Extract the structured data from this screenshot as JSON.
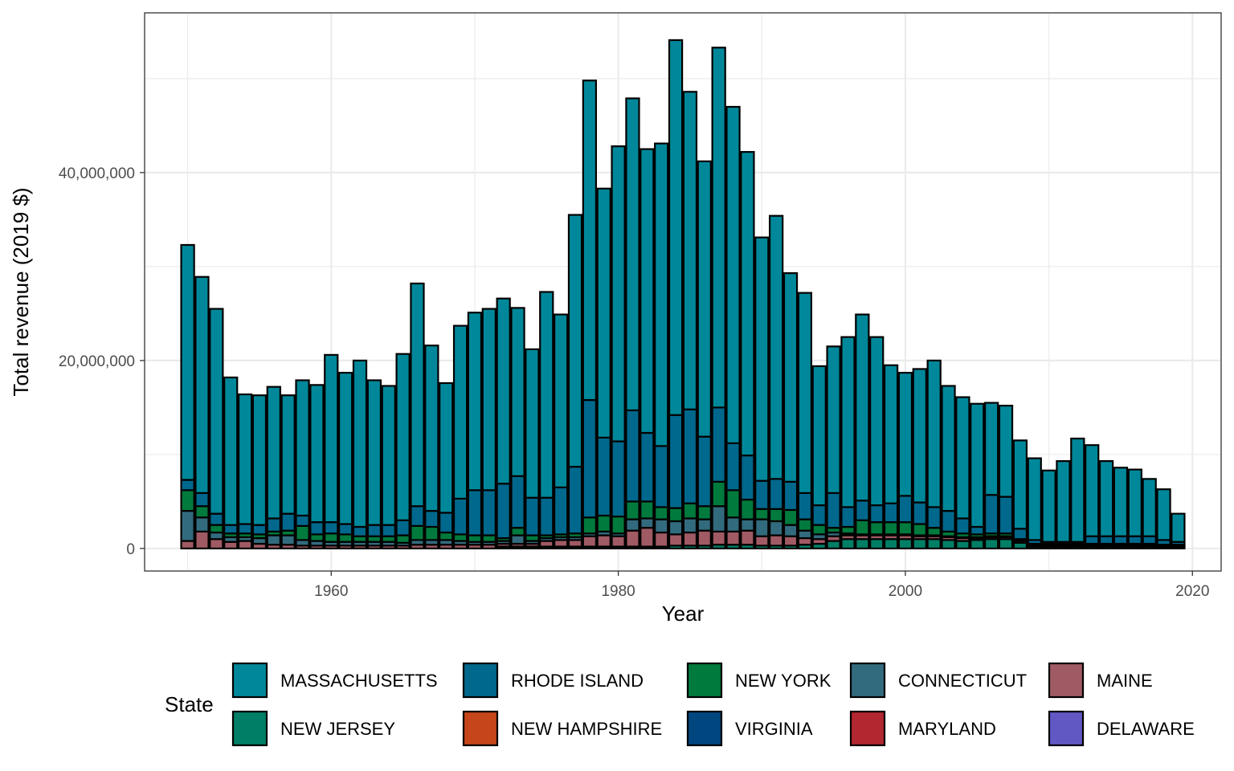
{
  "chart_data": {
    "type": "bar",
    "stacked": true,
    "xlabel": "Year",
    "ylabel": "Total revenue (2019 $)",
    "xlim": [
      1947,
      2022
    ],
    "ylim": [
      -2400000,
      57000000
    ],
    "x_ticks": [
      1960,
      1980,
      2000,
      2020
    ],
    "y_ticks": [
      0,
      20000000,
      40000000
    ],
    "y_tick_labels": [
      "0",
      "20,000,000",
      "40,000,000"
    ],
    "grid": true,
    "legend": {
      "title": "State",
      "position": "bottom",
      "entries": [
        {
          "name": "MASSACHUSETTS",
          "color": "#00889A"
        },
        {
          "name": "RHODE ISLAND",
          "color": "#00688C"
        },
        {
          "name": "NEW YORK",
          "color": "#007A3D"
        },
        {
          "name": "CONNECTICUT",
          "color": "#336B7E"
        },
        {
          "name": "MAINE",
          "color": "#A05A64"
        },
        {
          "name": "NEW JERSEY",
          "color": "#007F66"
        },
        {
          "name": "NEW HAMPSHIRE",
          "color": "#C4461A"
        },
        {
          "name": "VIRGINIA",
          "color": "#00467F"
        },
        {
          "name": "MARYLAND",
          "color": "#B22730"
        },
        {
          "name": "DELAWARE",
          "color": "#6258C4"
        }
      ]
    },
    "stack_order": [
      "DELAWARE",
      "MARYLAND",
      "VIRGINIA",
      "NEW HAMPSHIRE",
      "NEW JERSEY",
      "MAINE",
      "CONNECTICUT",
      "NEW YORK",
      "RHODE ISLAND",
      "MASSACHUSETTS"
    ],
    "series": [
      {
        "name": "MAINE",
        "years": [
          1950,
          1951,
          1952,
          1953,
          1954,
          1955,
          1956,
          1957,
          1958,
          1959,
          1960,
          1961,
          1962,
          1963,
          1964,
          1965,
          1966,
          1967,
          1968,
          1969,
          1970,
          1971,
          1972,
          1973,
          1974,
          1975,
          1976,
          1977,
          1978,
          1979,
          1980,
          1981,
          1982,
          1983,
          1984,
          1985,
          1986,
          1987,
          1988,
          1989,
          1990,
          1991,
          1992,
          1993,
          1994,
          1995,
          1996,
          1997,
          1998,
          1999,
          2000,
          2001,
          2002,
          2003,
          2004,
          2005,
          2006,
          2007,
          2008,
          2009,
          2010,
          2011,
          2012,
          2013,
          2014,
          2015,
          2016,
          2017,
          2018,
          2019
        ],
        "values": [
          800000,
          1800000,
          1000000,
          700000,
          800000,
          500000,
          400000,
          400000,
          300000,
          300000,
          300000,
          300000,
          300000,
          300000,
          300000,
          300000,
          400000,
          400000,
          400000,
          400000,
          400000,
          400000,
          300000,
          300000,
          300000,
          600000,
          700000,
          700000,
          1100000,
          1200000,
          1100000,
          1700000,
          2000000,
          1500000,
          1200000,
          1400000,
          1600000,
          1400000,
          1400000,
          1500000,
          1000000,
          1100000,
          1000000,
          700000,
          500000,
          500000,
          400000,
          400000,
          400000,
          400000,
          400000,
          300000,
          300000,
          300000,
          300000,
          200000,
          200000,
          200000,
          200000,
          100000,
          100000,
          100000,
          100000,
          100000,
          100000,
          100000,
          100000,
          100000,
          100000,
          100000
        ]
      },
      {
        "name": "CONNECTICUT",
        "years": [
          1950,
          1951,
          1952,
          1953,
          1954,
          1955,
          1956,
          1957,
          1958,
          1959,
          1960,
          1961,
          1962,
          1963,
          1964,
          1965,
          1966,
          1967,
          1968,
          1969,
          1970,
          1971,
          1972,
          1973,
          1974,
          1975,
          1976,
          1977,
          1978,
          1979,
          1980,
          1981,
          1982,
          1983,
          1984,
          1985,
          1986,
          1987,
          1988,
          1989,
          1990,
          1991,
          1992,
          1993,
          1994,
          1995,
          1996,
          1997,
          1998,
          1999,
          2000,
          2001,
          2002,
          2003,
          2004,
          2005,
          2006,
          2007,
          2008,
          2009,
          2010,
          2011,
          2012,
          2013,
          2014,
          2015,
          2016,
          2017,
          2018,
          2019
        ],
        "values": [
          3200000,
          1500000,
          700000,
          500000,
          400000,
          600000,
          1000000,
          1000000,
          600000,
          500000,
          400000,
          400000,
          400000,
          400000,
          400000,
          300000,
          500000,
          500000,
          500000,
          400000,
          300000,
          300000,
          300000,
          900000,
          300000,
          300000,
          300000,
          300000,
          300000,
          400000,
          300000,
          1200000,
          1000000,
          1400000,
          1400000,
          1500000,
          1200000,
          2700000,
          1500000,
          1200000,
          1800000,
          1500000,
          1200000,
          800000,
          500000,
          400000,
          200000,
          100000,
          100000,
          100000,
          100000,
          100000,
          100000,
          100000,
          100000,
          100000,
          100000,
          100000,
          100000,
          100000,
          100000,
          100000,
          100000,
          100000,
          100000,
          100000,
          100000,
          100000,
          100000,
          100000
        ]
      },
      {
        "name": "NEW YORK",
        "years": [
          1950,
          1951,
          1952,
          1953,
          1954,
          1955,
          1956,
          1957,
          1958,
          1959,
          1960,
          1961,
          1962,
          1963,
          1964,
          1965,
          1966,
          1967,
          1968,
          1969,
          1970,
          1971,
          1972,
          1973,
          1974,
          1975,
          1976,
          1977,
          1978,
          1979,
          1980,
          1981,
          1982,
          1983,
          1984,
          1985,
          1986,
          1987,
          1988,
          1989,
          1990,
          1991,
          1992,
          1993,
          1994,
          1995,
          1996,
          1997,
          1998,
          1999,
          2000,
          2001,
          2002,
          2003,
          2004,
          2005,
          2006,
          2007,
          2008,
          2009,
          2010,
          2011,
          2012,
          2013,
          2014,
          2015,
          2016,
          2017,
          2018,
          2019
        ],
        "values": [
          2200000,
          1200000,
          800000,
          400000,
          400000,
          400000,
          400000,
          500000,
          1500000,
          700000,
          900000,
          800000,
          600000,
          600000,
          600000,
          800000,
          1500000,
          1400000,
          800000,
          700000,
          700000,
          700000,
          300000,
          800000,
          600000,
          300000,
          300000,
          400000,
          1700000,
          1700000,
          1800000,
          1900000,
          1800000,
          1300000,
          1400000,
          1600000,
          1400000,
          2600000,
          2900000,
          2100000,
          1100000,
          1300000,
          1600000,
          1200000,
          1000000,
          500000,
          700000,
          1500000,
          1300000,
          1300000,
          1300000,
          1200000,
          800000,
          500000,
          400000,
          300000,
          300000,
          300000,
          100000,
          100000,
          100000,
          100000,
          100000,
          100000,
          100000,
          100000,
          100000,
          100000,
          100000,
          100000
        ]
      },
      {
        "name": "NEW JERSEY",
        "years": [
          1950,
          1951,
          1952,
          1953,
          1954,
          1955,
          1956,
          1957,
          1958,
          1959,
          1960,
          1961,
          1962,
          1963,
          1964,
          1965,
          1966,
          1967,
          1968,
          1969,
          1970,
          1971,
          1972,
          1973,
          1974,
          1975,
          1976,
          1977,
          1978,
          1979,
          1980,
          1981,
          1982,
          1983,
          1984,
          1985,
          1986,
          1987,
          1988,
          1989,
          1990,
          1991,
          1992,
          1993,
          1994,
          1995,
          1996,
          1997,
          1998,
          1999,
          2000,
          2001,
          2002,
          2003,
          2004,
          2005,
          2006,
          2007,
          2008,
          2009,
          2010,
          2011,
          2012,
          2013,
          2014,
          2015,
          2016,
          2017,
          2018,
          2019
        ],
        "values": [
          0,
          0,
          0,
          0,
          0,
          0,
          0,
          0,
          0,
          0,
          0,
          0,
          0,
          0,
          0,
          0,
          0,
          0,
          0,
          0,
          0,
          0,
          200000,
          200000,
          200000,
          200000,
          200000,
          200000,
          200000,
          200000,
          200000,
          200000,
          200000,
          200000,
          300000,
          300000,
          300000,
          400000,
          400000,
          400000,
          300000,
          300000,
          300000,
          400000,
          500000,
          800000,
          1000000,
          1000000,
          1000000,
          1000000,
          1000000,
          1000000,
          1000000,
          900000,
          800000,
          900000,
          1000000,
          1000000,
          600000,
          200000,
          200000,
          200000,
          200000,
          200000,
          200000,
          200000,
          200000,
          200000,
          100000,
          100000
        ]
      },
      {
        "name": "RHODE ISLAND",
        "years": [
          1950,
          1951,
          1952,
          1953,
          1954,
          1955,
          1956,
          1957,
          1958,
          1959,
          1960,
          1961,
          1962,
          1963,
          1964,
          1965,
          1966,
          1967,
          1968,
          1969,
          1970,
          1971,
          1972,
          1973,
          1974,
          1975,
          1976,
          1977,
          1978,
          1979,
          1980,
          1981,
          1982,
          1983,
          1984,
          1985,
          1986,
          1987,
          1988,
          1989,
          1990,
          1991,
          1992,
          1993,
          1994,
          1995,
          1996,
          1997,
          1998,
          1999,
          2000,
          2001,
          2002,
          2003,
          2004,
          2005,
          2006,
          2007,
          2008,
          2009,
          2010,
          2011,
          2012,
          2013,
          2014,
          2015,
          2016,
          2017,
          2018,
          2019
        ],
        "values": [
          1100000,
          1400000,
          1200000,
          900000,
          1000000,
          1000000,
          1400000,
          1800000,
          1100000,
          1300000,
          1200000,
          1100000,
          1000000,
          1200000,
          1200000,
          1600000,
          2100000,
          1700000,
          2100000,
          3800000,
          4800000,
          4800000,
          5800000,
          5500000,
          4000000,
          4000000,
          5000000,
          7100000,
          12500000,
          8300000,
          8000000,
          9700000,
          7300000,
          6500000,
          9900000,
          10000000,
          7400000,
          7900000,
          5000000,
          4700000,
          3000000,
          3200000,
          3000000,
          2800000,
          2100000,
          3700000,
          2100000,
          2100000,
          1800000,
          2000000,
          2800000,
          2300000,
          2200000,
          2200000,
          1600000,
          800000,
          4100000,
          3900000,
          1100000,
          400000,
          200000,
          200000,
          200000,
          800000,
          800000,
          800000,
          800000,
          800000,
          500000,
          300000
        ]
      },
      {
        "name": "MASSACHUSETTS",
        "years": [
          1950,
          1951,
          1952,
          1953,
          1954,
          1955,
          1956,
          1957,
          1958,
          1959,
          1960,
          1961,
          1962,
          1963,
          1964,
          1965,
          1966,
          1967,
          1968,
          1969,
          1970,
          1971,
          1972,
          1973,
          1974,
          1975,
          1976,
          1977,
          1978,
          1979,
          1980,
          1981,
          1982,
          1983,
          1984,
          1985,
          1986,
          1987,
          1988,
          1989,
          1990,
          1991,
          1992,
          1993,
          1994,
          1995,
          1996,
          1997,
          1998,
          1999,
          2000,
          2001,
          2002,
          2003,
          2004,
          2005,
          2006,
          2007,
          2008,
          2009,
          2010,
          2011,
          2012,
          2013,
          2014,
          2015,
          2016,
          2017,
          2018,
          2019
        ],
        "values": [
          25000000,
          23000000,
          21800000,
          15700000,
          13800000,
          13800000,
          14000000,
          12600000,
          14400000,
          14600000,
          17800000,
          16100000,
          17700000,
          15400000,
          14800000,
          17700000,
          23700000,
          17600000,
          13800000,
          18400000,
          18900000,
          19300000,
          19700000,
          17900000,
          15800000,
          21900000,
          18400000,
          26800000,
          34000000,
          26500000,
          31400000,
          33200000,
          30200000,
          32200000,
          39900000,
          33800000,
          29300000,
          38300000,
          35800000,
          32300000,
          25900000,
          28000000,
          22200000,
          21300000,
          14800000,
          15600000,
          18100000,
          19800000,
          17900000,
          14700000,
          13100000,
          14200000,
          15600000,
          13300000,
          12900000,
          13100000,
          9800000,
          9700000,
          9400000,
          8700000,
          7600000,
          8600000,
          11000000,
          9700000,
          8000000,
          7300000,
          7100000,
          6100000,
          5400000,
          3000000
        ]
      }
    ]
  }
}
